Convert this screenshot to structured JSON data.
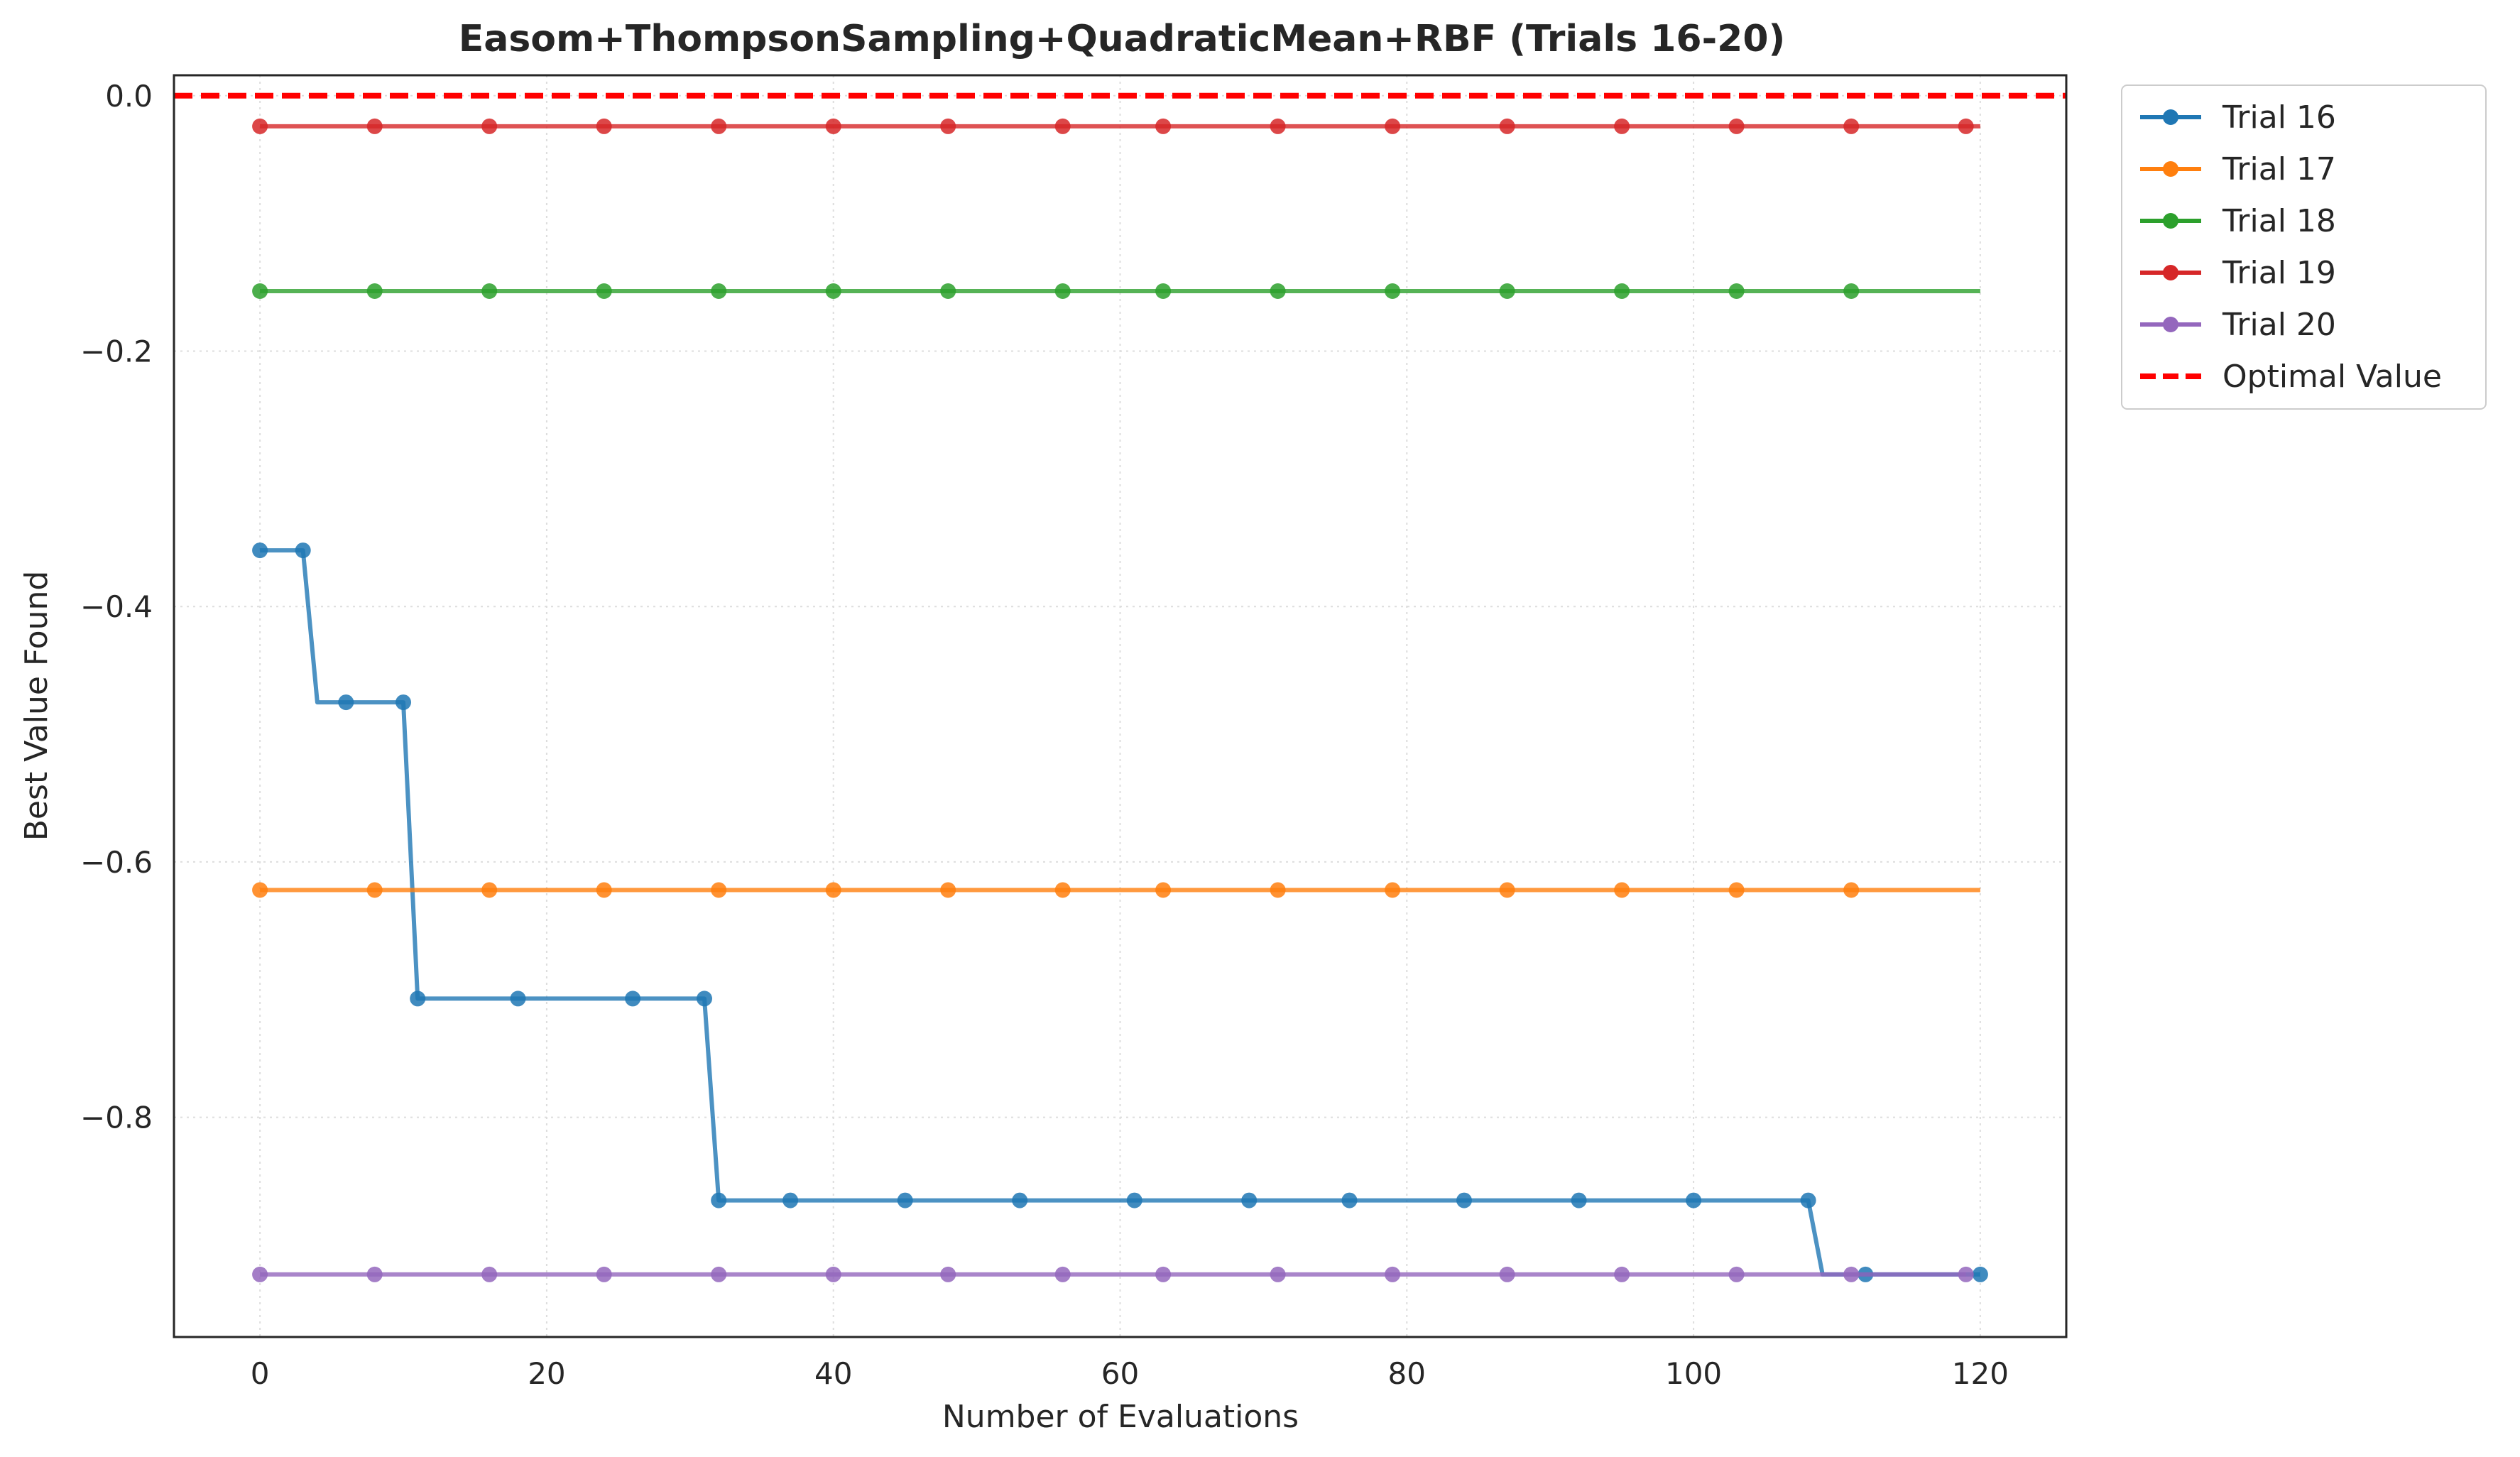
{
  "chart_data": {
    "type": "line",
    "title": "Easom+ThompsonSampling+QuadraticMean+RBF (Trials 16-20)",
    "xlabel": "Number of Evaluations",
    "ylabel": "Best Value Found",
    "xlim": [
      -6,
      126
    ],
    "ylim": [
      -0.972,
      0.016
    ],
    "xticks": [
      0,
      20,
      40,
      60,
      80,
      100,
      120
    ],
    "yticks": [
      0.0,
      -0.2,
      -0.4,
      -0.6,
      -0.8
    ],
    "xtick_labels": [
      "0",
      "20",
      "40",
      "60",
      "80",
      "100",
      "120"
    ],
    "ytick_labels": [
      "0.0",
      "−0.2",
      "−0.4",
      "−0.6",
      "−0.8"
    ],
    "grid": true,
    "legend_position": "upper-right-outside",
    "series": [
      {
        "name": "Trial 16",
        "color": "#1f77b4",
        "step_points": [
          [
            0,
            -0.356
          ],
          [
            3,
            -0.356
          ],
          [
            4,
            -0.475
          ],
          [
            6,
            -0.475
          ],
          [
            10,
            -0.475
          ],
          [
            11,
            -0.707
          ],
          [
            18,
            -0.707
          ],
          [
            26,
            -0.707
          ],
          [
            31,
            -0.707
          ],
          [
            32,
            -0.865
          ],
          [
            37,
            -0.865
          ],
          [
            45,
            -0.865
          ],
          [
            53,
            -0.865
          ],
          [
            61,
            -0.865
          ],
          [
            69,
            -0.865
          ],
          [
            76,
            -0.865
          ],
          [
            84,
            -0.865
          ],
          [
            92,
            -0.865
          ],
          [
            100,
            -0.865
          ],
          [
            108,
            -0.865
          ],
          [
            109,
            -0.923
          ],
          [
            112,
            -0.923
          ],
          [
            120,
            -0.923
          ]
        ],
        "markers": [
          [
            0,
            -0.356
          ],
          [
            3,
            -0.356
          ],
          [
            6,
            -0.475
          ],
          [
            10,
            -0.475
          ],
          [
            11,
            -0.707
          ],
          [
            18,
            -0.707
          ],
          [
            26,
            -0.707
          ],
          [
            31,
            -0.707
          ],
          [
            32,
            -0.865
          ],
          [
            37,
            -0.865
          ],
          [
            45,
            -0.865
          ],
          [
            53,
            -0.865
          ],
          [
            61,
            -0.865
          ],
          [
            69,
            -0.865
          ],
          [
            76,
            -0.865
          ],
          [
            84,
            -0.865
          ],
          [
            92,
            -0.865
          ],
          [
            100,
            -0.865
          ],
          [
            108,
            -0.865
          ],
          [
            112,
            -0.923
          ],
          [
            120,
            -0.923
          ]
        ]
      },
      {
        "name": "Trial 17",
        "color": "#ff7f0e",
        "x": [
          0,
          8,
          16,
          24,
          32,
          40,
          48,
          56,
          63,
          71,
          79,
          87,
          95,
          103,
          111,
          120
        ],
        "values": [
          -0.622,
          -0.622,
          -0.622,
          -0.622,
          -0.622,
          -0.622,
          -0.622,
          -0.622,
          -0.622,
          -0.622,
          -0.622,
          -0.622,
          -0.622,
          -0.622,
          -0.622,
          -0.622
        ],
        "marker_x": [
          0,
          8,
          16,
          24,
          32,
          40,
          48,
          56,
          63,
          71,
          79,
          87,
          95,
          103,
          111
        ]
      },
      {
        "name": "Trial 18",
        "color": "#2ca02c",
        "x": [
          0,
          8,
          16,
          24,
          32,
          40,
          48,
          56,
          63,
          71,
          79,
          87,
          95,
          103,
          111,
          120
        ],
        "values": [
          -0.153,
          -0.153,
          -0.153,
          -0.153,
          -0.153,
          -0.153,
          -0.153,
          -0.153,
          -0.153,
          -0.153,
          -0.153,
          -0.153,
          -0.153,
          -0.153,
          -0.153,
          -0.153
        ],
        "marker_x": [
          0,
          8,
          16,
          24,
          32,
          40,
          48,
          56,
          63,
          71,
          79,
          87,
          95,
          103,
          111
        ]
      },
      {
        "name": "Trial 19",
        "color": "#d62728",
        "x": [
          0,
          8,
          16,
          24,
          32,
          40,
          48,
          56,
          63,
          71,
          79,
          87,
          95,
          103,
          111,
          120
        ],
        "values": [
          -0.024,
          -0.024,
          -0.024,
          -0.024,
          -0.024,
          -0.024,
          -0.024,
          -0.024,
          -0.024,
          -0.024,
          -0.024,
          -0.024,
          -0.024,
          -0.024,
          -0.024,
          -0.024
        ],
        "marker_x": [
          0,
          8,
          16,
          24,
          32,
          40,
          48,
          56,
          63,
          71,
          79,
          87,
          95,
          103,
          111,
          119
        ]
      },
      {
        "name": "Trial 20",
        "color": "#9467bd",
        "x": [
          0,
          8,
          16,
          24,
          32,
          40,
          48,
          56,
          63,
          71,
          79,
          87,
          95,
          103,
          111,
          119
        ],
        "values": [
          -0.923,
          -0.923,
          -0.923,
          -0.923,
          -0.923,
          -0.923,
          -0.923,
          -0.923,
          -0.923,
          -0.923,
          -0.923,
          -0.923,
          -0.923,
          -0.923,
          -0.923,
          -0.923
        ],
        "marker_x": [
          0,
          8,
          16,
          24,
          32,
          40,
          48,
          56,
          63,
          71,
          79,
          87,
          95,
          103,
          111,
          119
        ]
      }
    ],
    "reference_line": {
      "name": "Optimal Value",
      "y": 0.0,
      "color": "#ff0000",
      "style": "dashed"
    }
  }
}
